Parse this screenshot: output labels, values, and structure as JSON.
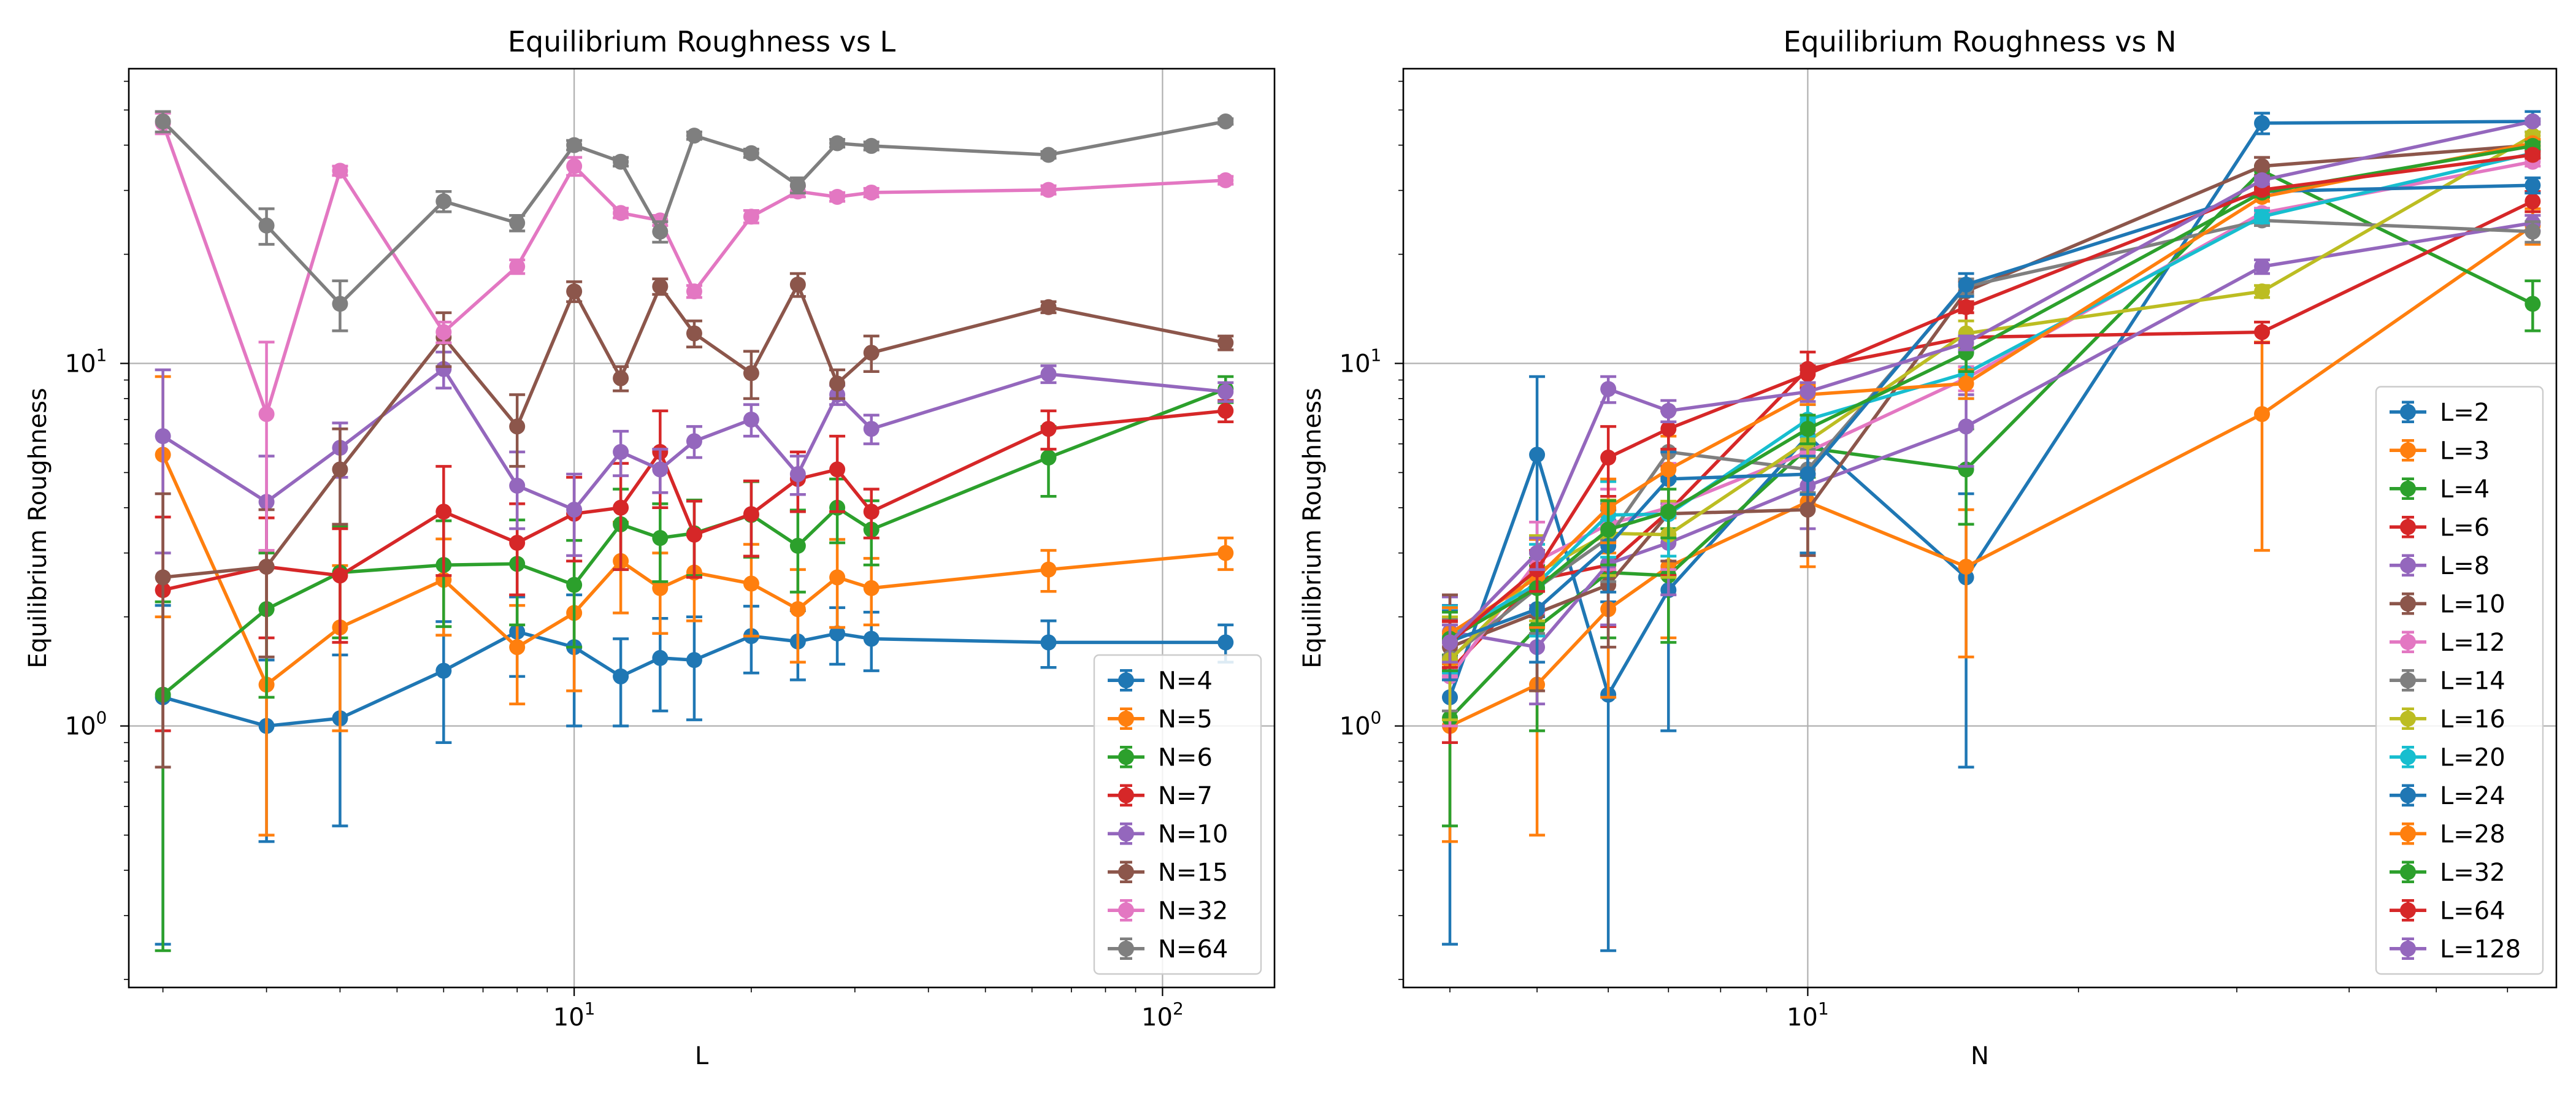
{
  "chart_data": [
    {
      "type": "line",
      "title": "Equilibrium Roughness vs L",
      "xlabel": "L",
      "ylabel": "Equilibrium Roughness",
      "xscale": "log",
      "yscale": "log",
      "xlim": [
        1.75,
        155
      ],
      "ylim": [
        0.19,
        65
      ],
      "xticks": [
        {
          "v": 10,
          "b": "10",
          "e": "1"
        },
        {
          "v": 100,
          "b": "10",
          "e": "2"
        }
      ],
      "yticks": [
        {
          "v": 1,
          "b": "10",
          "e": "0"
        },
        {
          "v": 10,
          "b": "10",
          "e": "1"
        }
      ],
      "grid": true,
      "legend": "lower-right",
      "x": [
        2,
        3,
        4,
        6,
        8,
        10,
        12,
        14,
        16,
        20,
        24,
        28,
        32,
        64,
        128
      ],
      "series": [
        {
          "name": "N=4",
          "color": "#1f77b4",
          "values": [
            1.2,
            1.0,
            1.05,
            1.42,
            1.82,
            1.65,
            1.37,
            1.54,
            1.52,
            1.77,
            1.71,
            1.8,
            1.74,
            1.7,
            1.7
          ],
          "errors": [
            0.95,
            0.52,
            0.52,
            0.52,
            0.45,
            0.65,
            0.37,
            0.44,
            0.48,
            0.37,
            0.37,
            0.32,
            0.32,
            0.25,
            0.2
          ]
        },
        {
          "name": "N=5",
          "color": "#ff7f0e",
          "values": [
            5.6,
            1.3,
            1.87,
            2.53,
            1.65,
            2.05,
            2.85,
            2.4,
            2.65,
            2.47,
            2.1,
            2.57,
            2.4,
            2.7,
            3.0
          ],
          "errors": [
            3.6,
            0.8,
            0.9,
            0.75,
            0.5,
            0.8,
            0.8,
            0.6,
            0.7,
            0.7,
            0.6,
            0.7,
            0.5,
            0.35,
            0.3
          ]
        },
        {
          "name": "N=6",
          "color": "#2ca02c",
          "values": [
            1.22,
            2.1,
            2.65,
            2.78,
            2.8,
            2.45,
            3.6,
            3.3,
            3.4,
            3.82,
            3.14,
            4.0,
            3.48,
            5.5,
            8.5
          ],
          "errors": [
            0.98,
            0.9,
            0.9,
            0.9,
            0.9,
            0.8,
            0.9,
            0.8,
            0.8,
            0.9,
            0.8,
            0.8,
            0.7,
            1.2,
            0.7
          ]
        },
        {
          "name": "N=7",
          "color": "#d62728",
          "values": [
            2.37,
            2.75,
            2.6,
            3.9,
            3.2,
            3.85,
            4.0,
            5.7,
            3.37,
            3.84,
            4.8,
            5.1,
            3.9,
            6.6,
            7.4
          ],
          "errors": [
            1.4,
            1.0,
            0.9,
            1.3,
            0.9,
            1.0,
            1.3,
            1.7,
            0.8,
            0.9,
            0.9,
            1.2,
            0.6,
            0.8,
            0.5
          ]
        },
        {
          "name": "N=10",
          "color": "#9467bd",
          "values": [
            6.3,
            4.15,
            5.85,
            9.65,
            4.6,
            3.95,
            5.7,
            5.1,
            6.1,
            7.0,
            4.95,
            8.2,
            6.6,
            9.35,
            8.35
          ],
          "errors": [
            3.3,
            1.4,
            1.0,
            1.1,
            1.1,
            1.0,
            0.8,
            0.7,
            0.6,
            0.7,
            0.6,
            0.5,
            0.6,
            0.5,
            0.5
          ]
        },
        {
          "name": "N=15",
          "color": "#8c564b",
          "values": [
            2.57,
            2.75,
            5.1,
            11.8,
            6.7,
            15.8,
            9.1,
            16.3,
            12.1,
            9.4,
            16.5,
            8.8,
            10.7,
            14.3,
            11.4
          ],
          "errors": [
            1.8,
            1.2,
            1.5,
            2.0,
            1.5,
            1.0,
            0.7,
            0.8,
            1.0,
            1.4,
            1.2,
            0.8,
            1.2,
            0.5,
            0.5
          ]
        },
        {
          "name": "N=32",
          "color": "#e377c2",
          "values": [
            46.0,
            7.25,
            34.0,
            12.2,
            18.5,
            35.0,
            26.0,
            24.8,
            15.8,
            25.4,
            29.8,
            28.8,
            29.6,
            30.1,
            32.0
          ],
          "errors": [
            3.0,
            4.2,
            1.0,
            0.8,
            0.8,
            2.0,
            0.8,
            0.8,
            0.6,
            1.0,
            1.0,
            0.8,
            0.8,
            0.8,
            0.8
          ]
        },
        {
          "name": "N=64",
          "color": "#7f7f7f",
          "values": [
            46.5,
            24.0,
            14.6,
            28.0,
            24.4,
            40.0,
            36.0,
            23.1,
            42.5,
            38.0,
            31.0,
            40.5,
            39.8,
            37.6,
            46.5
          ],
          "errors": [
            3.0,
            2.7,
            2.3,
            1.8,
            1.2,
            1.2,
            1.0,
            1.5,
            1.0,
            1.0,
            1.5,
            1.0,
            1.0,
            0.8,
            0.8
          ]
        }
      ]
    },
    {
      "type": "line",
      "title": "Equilibrium Roughness vs N",
      "xlabel": "N",
      "ylabel": "Equilibrium Roughness",
      "xscale": "log",
      "yscale": "log",
      "xlim": [
        3.55,
        68
      ],
      "ylim": [
        0.19,
        65
      ],
      "xticks": [
        {
          "v": 10,
          "b": "10",
          "e": "1"
        }
      ],
      "yticks": [
        {
          "v": 1,
          "b": "10",
          "e": "0"
        },
        {
          "v": 10,
          "b": "10",
          "e": "1"
        }
      ],
      "grid": true,
      "legend": "lower-right",
      "x": [
        4,
        5,
        6,
        7,
        10,
        15,
        32,
        64
      ],
      "series": [
        {
          "name": "L=2",
          "color": "#1f77b4",
          "values": [
            1.2,
            5.6,
            1.22,
            2.37,
            6.3,
            2.57,
            46.0,
            46.5
          ],
          "errors": [
            0.95,
            3.6,
            0.98,
            1.4,
            3.3,
            1.8,
            3.0,
            3.0
          ]
        },
        {
          "name": "L=3",
          "color": "#ff7f0e",
          "values": [
            1.0,
            1.3,
            2.1,
            2.75,
            4.15,
            2.75,
            7.25,
            24.0
          ],
          "errors": [
            0.52,
            0.8,
            0.9,
            1.0,
            1.4,
            1.2,
            4.2,
            2.7
          ]
        },
        {
          "name": "L=4",
          "color": "#2ca02c",
          "values": [
            1.05,
            1.87,
            2.65,
            2.6,
            5.85,
            5.1,
            34.0,
            14.6
          ],
          "errors": [
            0.52,
            0.9,
            0.9,
            0.9,
            1.0,
            1.5,
            1.0,
            2.3
          ]
        },
        {
          "name": "L=6",
          "color": "#d62728",
          "values": [
            1.42,
            2.53,
            2.78,
            3.9,
            9.65,
            11.8,
            12.2,
            28.0
          ],
          "errors": [
            0.52,
            0.75,
            0.9,
            1.3,
            1.1,
            2.0,
            0.8,
            1.8
          ]
        },
        {
          "name": "L=8",
          "color": "#9467bd",
          "values": [
            1.82,
            1.65,
            2.8,
            3.2,
            4.6,
            6.7,
            18.5,
            24.4
          ],
          "errors": [
            0.45,
            0.5,
            0.9,
            0.9,
            1.1,
            1.5,
            0.8,
            1.2
          ]
        },
        {
          "name": "L=10",
          "color": "#8c564b",
          "values": [
            1.65,
            2.05,
            2.45,
            3.85,
            3.95,
            15.8,
            35.0,
            40.0
          ],
          "errors": [
            0.65,
            0.8,
            0.8,
            1.0,
            1.0,
            1.0,
            2.0,
            1.2
          ]
        },
        {
          "name": "L=12",
          "color": "#e377c2",
          "values": [
            1.37,
            2.85,
            3.6,
            4.0,
            5.7,
            9.1,
            26.0,
            36.0
          ],
          "errors": [
            0.37,
            0.8,
            0.9,
            1.3,
            0.8,
            0.7,
            0.8,
            1.0
          ]
        },
        {
          "name": "L=14",
          "color": "#7f7f7f",
          "values": [
            1.54,
            2.4,
            3.3,
            5.7,
            5.1,
            16.3,
            24.8,
            23.1
          ],
          "errors": [
            0.44,
            0.6,
            0.8,
            1.7,
            0.7,
            0.8,
            0.8,
            1.5
          ]
        },
        {
          "name": "L=16",
          "color": "#bcbd22",
          "values": [
            1.52,
            2.65,
            3.4,
            3.37,
            6.1,
            12.1,
            15.8,
            42.5
          ],
          "errors": [
            0.48,
            0.7,
            0.8,
            0.8,
            0.6,
            1.0,
            0.6,
            1.0
          ]
        },
        {
          "name": "L=20",
          "color": "#17becf",
          "values": [
            1.77,
            2.47,
            3.82,
            3.84,
            7.0,
            9.4,
            25.4,
            38.0
          ],
          "errors": [
            0.37,
            0.7,
            0.9,
            0.9,
            0.7,
            1.4,
            1.0,
            1.0
          ]
        },
        {
          "name": "L=24",
          "color": "#1f77b4",
          "values": [
            1.71,
            2.1,
            3.14,
            4.8,
            4.95,
            16.5,
            29.8,
            31.0
          ],
          "errors": [
            0.37,
            0.6,
            0.8,
            0.9,
            0.6,
            1.2,
            1.0,
            1.5
          ]
        },
        {
          "name": "L=28",
          "color": "#ff7f0e",
          "values": [
            1.8,
            2.57,
            4.0,
            5.1,
            8.2,
            8.8,
            28.8,
            40.5
          ],
          "errors": [
            0.32,
            0.7,
            0.8,
            1.2,
            0.5,
            0.8,
            0.8,
            1.0
          ]
        },
        {
          "name": "L=32",
          "color": "#2ca02c",
          "values": [
            1.74,
            2.4,
            3.48,
            3.9,
            6.6,
            10.7,
            29.6,
            39.8
          ],
          "errors": [
            0.32,
            0.5,
            0.7,
            0.6,
            0.6,
            1.2,
            0.8,
            1.0
          ]
        },
        {
          "name": "L=64",
          "color": "#d62728",
          "values": [
            1.7,
            2.7,
            5.5,
            6.6,
            9.35,
            14.3,
            30.1,
            37.6
          ],
          "errors": [
            0.25,
            0.35,
            1.2,
            0.8,
            0.5,
            0.5,
            0.8,
            0.8
          ]
        },
        {
          "name": "L=128",
          "color": "#9467bd",
          "values": [
            1.7,
            3.0,
            8.5,
            7.4,
            8.35,
            11.4,
            32.0,
            46.5
          ],
          "errors": [
            0.2,
            0.3,
            0.7,
            0.5,
            0.5,
            0.5,
            0.8,
            0.8
          ]
        }
      ]
    }
  ]
}
